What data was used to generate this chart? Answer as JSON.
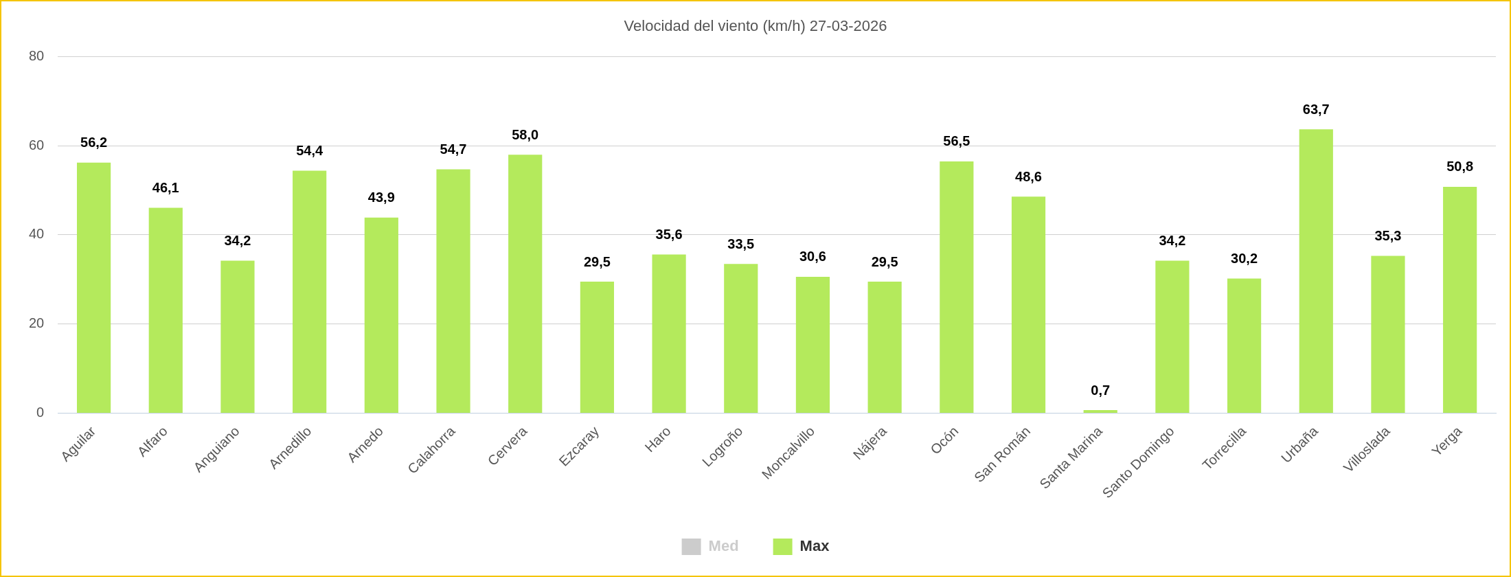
{
  "chart_data": {
    "type": "bar",
    "title": "Velocidad del viento (km/h) 27-03-2026",
    "categories": [
      "Aguilar",
      "Alfaro",
      "Anguiano",
      "Arnedillo",
      "Arnedo",
      "Calahorra",
      "Cervera",
      "Ezcaray",
      "Haro",
      "Logroño",
      "Moncalvillo",
      "Nájera",
      "Ocón",
      "San Román",
      "Santa Marina",
      "Santo Domingo",
      "Torrecilla",
      "Urbaña",
      "Villoslada",
      "Yerga"
    ],
    "series": [
      {
        "name": "Med",
        "color": "#cccccc",
        "values": [
          null,
          null,
          null,
          null,
          null,
          null,
          null,
          null,
          null,
          null,
          null,
          null,
          null,
          null,
          null,
          null,
          null,
          null,
          null,
          null
        ]
      },
      {
        "name": "Max",
        "color": "#b4ea5c",
        "values": [
          56.2,
          46.1,
          34.2,
          54.4,
          43.9,
          54.7,
          58.0,
          29.5,
          35.6,
          33.5,
          30.6,
          29.5,
          56.5,
          48.6,
          0.7,
          34.2,
          30.2,
          63.7,
          35.3,
          50.8
        ],
        "value_labels": [
          "56,2",
          "46,1",
          "34,2",
          "54,4",
          "43,9",
          "54,7",
          "58,0",
          "29,5",
          "35,6",
          "33,5",
          "30,6",
          "29,5",
          "56,5",
          "48,6",
          "0,7",
          "34,2",
          "30,2",
          "63,7",
          "35,3",
          "50,8"
        ]
      }
    ],
    "ylim": [
      0,
      80
    ],
    "yticks": [
      0,
      20,
      40,
      60,
      80
    ],
    "grid": "y",
    "legend": "bottom"
  }
}
